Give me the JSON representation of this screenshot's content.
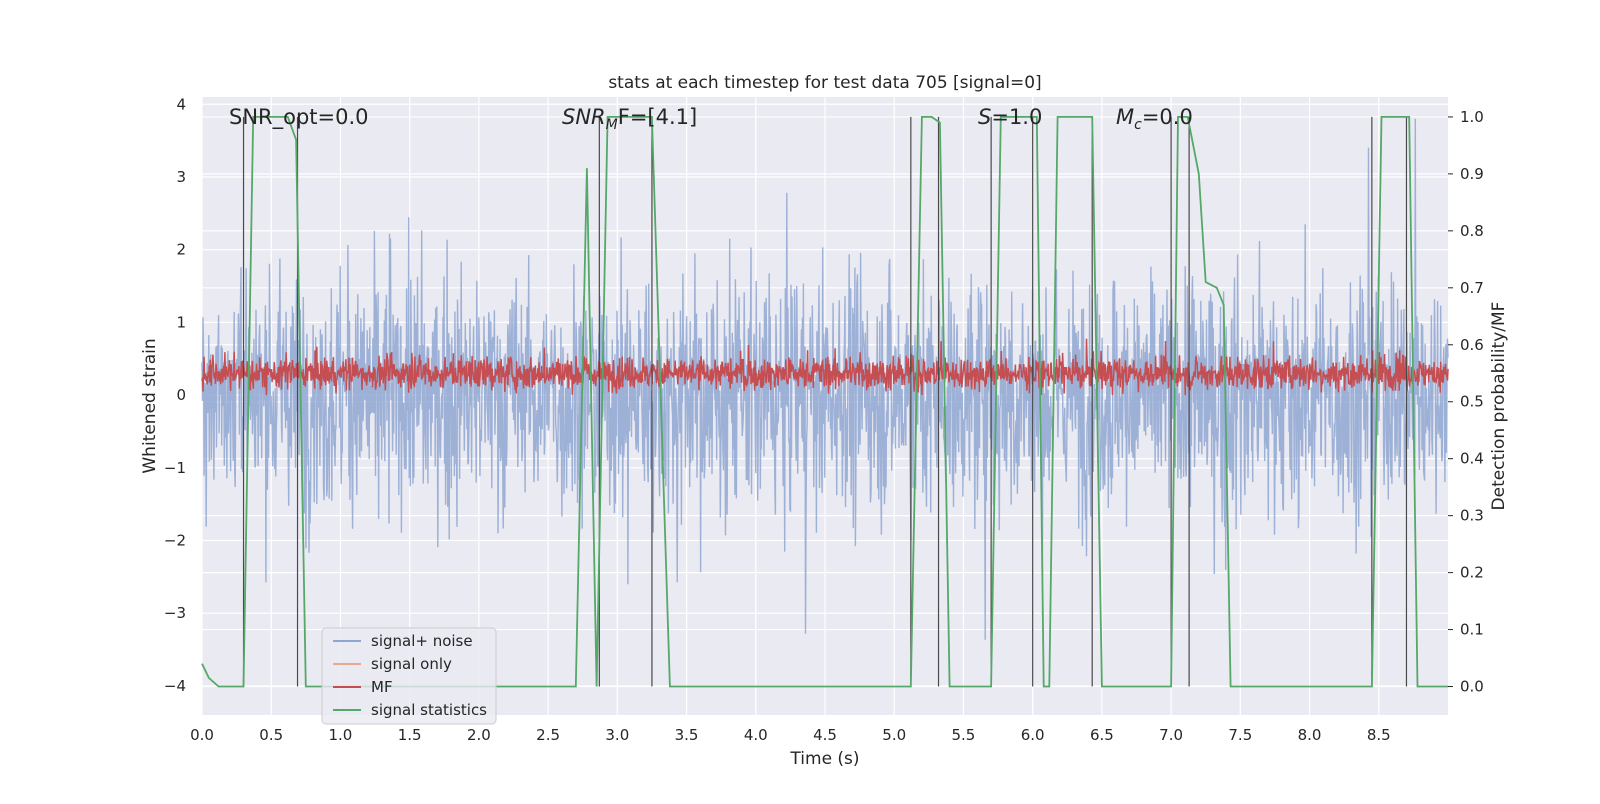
{
  "chart_data": {
    "type": "line",
    "title": "stats at each timestep for test data 705 [signal=0]",
    "xlabel": "Time (s)",
    "ylabel_left": "Whitened strain",
    "ylabel_right": "Detection probability/MF",
    "xlim": [
      0.0,
      9.0
    ],
    "ylim_left": [
      -4.4,
      4.1
    ],
    "ylim_right": [
      -0.05,
      1.035
    ],
    "x_ticks": [
      "0.0",
      "0.5",
      "1.0",
      "1.5",
      "2.0",
      "2.5",
      "3.0",
      "3.5",
      "4.0",
      "4.5",
      "5.0",
      "5.5",
      "6.0",
      "6.5",
      "7.0",
      "7.5",
      "8.0",
      "8.5"
    ],
    "y_ticks_left": [
      "4",
      "3",
      "2",
      "1",
      "0",
      "−1",
      "−2",
      "−3",
      "−4"
    ],
    "y_ticks_right": [
      "1.0",
      "0.9",
      "0.8",
      "0.7",
      "0.6",
      "0.5",
      "0.4",
      "0.3",
      "0.2",
      "0.1",
      "0.0"
    ],
    "grid": true,
    "legend_position": "lower-left",
    "annotations": {
      "snr_opt": "SNR_opt=0.0",
      "snr_mf_main": "SNR",
      "snr_mf_sub": "M",
      "snr_mf_tail": "F=[4.1]",
      "s_main": "S",
      "s_tail": "=1.0",
      "mc_main": "M",
      "mc_sub": "c",
      "mc_tail": "=0.0"
    },
    "series": [
      {
        "name": "signal+ noise",
        "color": "#8fa6d1",
        "axis": "left",
        "description_values": {
          "mean": 0.0,
          "typical_min": -3.0,
          "typical_max": 3.0
        }
      },
      {
        "name": "signal only",
        "color": "#e8a98e",
        "axis": "left",
        "values": []
      },
      {
        "name": "MF",
        "color": "#c44e52",
        "axis": "left",
        "description_values": {
          "mean": 0.3,
          "typical_min": 0.0,
          "typical_max": 0.8
        }
      },
      {
        "name": "signal statistics",
        "color": "#55a868",
        "axis": "right",
        "x": [
          0.0,
          0.05,
          0.12,
          0.3,
          0.37,
          0.62,
          0.68,
          0.75,
          2.7,
          2.78,
          2.85,
          2.93,
          3.25,
          3.38,
          5.12,
          5.2,
          5.27,
          5.33,
          5.4,
          5.7,
          5.77,
          6.03,
          6.08,
          6.12,
          6.18,
          6.43,
          6.5,
          7.0,
          7.05,
          7.12,
          7.2,
          7.25,
          7.33,
          7.38,
          7.43,
          8.45,
          8.52,
          8.72,
          8.78,
          9.0
        ],
        "values": [
          0.04,
          0.015,
          0.0,
          0.0,
          1.0,
          1.0,
          0.96,
          0.0,
          0.0,
          0.91,
          0.0,
          1.0,
          1.0,
          0.0,
          0.0,
          1.0,
          1.0,
          0.99,
          0.0,
          0.0,
          1.0,
          1.0,
          0.0,
          0.0,
          1.0,
          1.0,
          0.0,
          0.0,
          1.0,
          1.0,
          0.9,
          0.71,
          0.7,
          0.67,
          0.0,
          0.0,
          1.0,
          1.0,
          0.0,
          0.0
        ]
      }
    ],
    "vertical_markers_x": [
      0.3,
      0.69,
      2.87,
      3.25,
      5.12,
      5.32,
      5.7,
      6.0,
      6.43,
      7.0,
      7.13,
      8.45,
      8.7
    ]
  },
  "legend": [
    {
      "label": "signal+ noise",
      "color": "#8fa6d1"
    },
    {
      "label": "signal only",
      "color": "#e8a98e"
    },
    {
      "label": "MF",
      "color": "#c44e52"
    },
    {
      "label": "signal statistics",
      "color": "#55a868"
    }
  ]
}
